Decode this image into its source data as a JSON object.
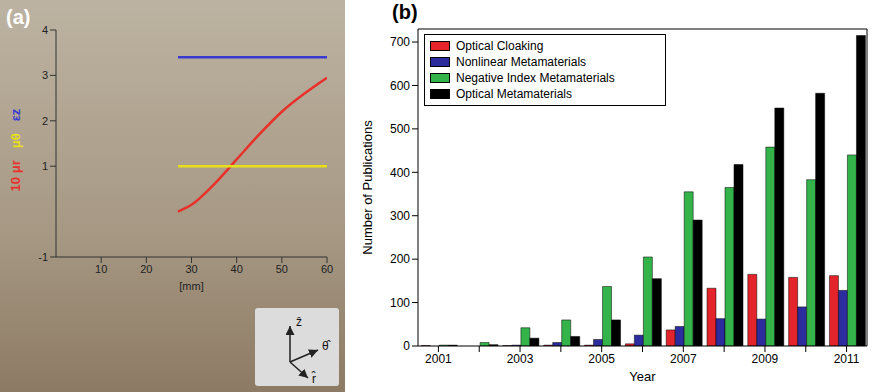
{
  "chart_data": [
    {
      "type": "line",
      "label": "(a)",
      "x_label": "[mm]",
      "xlim": [
        0,
        60
      ],
      "xticks": [
        10,
        20,
        30,
        40,
        50,
        60
      ],
      "ylim": [
        -1,
        4
      ],
      "yticks": [
        -1,
        1,
        2,
        3,
        4
      ],
      "annotations": [
        "ẑ",
        "θ̂",
        "r̂"
      ],
      "series": [
        {
          "name": "10 μr",
          "color": "#e8312a",
          "x": [
            27,
            30,
            35,
            40,
            45,
            50,
            55,
            60
          ],
          "values": [
            0,
            0.15,
            0.6,
            1.15,
            1.7,
            2.2,
            2.6,
            2.95
          ]
        },
        {
          "name": "μθ",
          "color": "#e6df1a",
          "x": [
            27,
            60
          ],
          "values": [
            1,
            1
          ]
        },
        {
          "name": "εz",
          "color": "#3a3ad0",
          "x": [
            27,
            60
          ],
          "values": [
            3.4,
            3.4
          ]
        }
      ]
    },
    {
      "type": "bar",
      "label": "(b)",
      "x_label": "Year",
      "y_label": "Number of Publications",
      "categories": [
        "2001",
        null,
        "2003",
        null,
        "2005",
        null,
        "2007",
        null,
        "2009",
        null,
        "2011"
      ],
      "ylim": [
        0,
        730
      ],
      "yticks": [
        0,
        100,
        200,
        300,
        400,
        500,
        600,
        700
      ],
      "legend": "upper left",
      "series": [
        {
          "name": "Optical Cloaking",
          "color": "#e3242b",
          "values": [
            1,
            0,
            1,
            2,
            2,
            5,
            37,
            133,
            165,
            158,
            162
          ]
        },
        {
          "name": "Nonlinear Metamaterials",
          "color": "#2c2c9e",
          "values": [
            0,
            0,
            2,
            8,
            15,
            25,
            45,
            63,
            62,
            90,
            128
          ]
        },
        {
          "name": "Negative Index Metamaterials",
          "color": "#33b34a",
          "values": [
            2,
            8,
            42,
            60,
            137,
            205,
            355,
            365,
            458,
            383,
            440
          ]
        },
        {
          "name": "Optical Metamaterials",
          "color": "#000000",
          "values": [
            2,
            3,
            18,
            22,
            60,
            155,
            290,
            418,
            548,
            582,
            715
          ]
        }
      ]
    }
  ]
}
